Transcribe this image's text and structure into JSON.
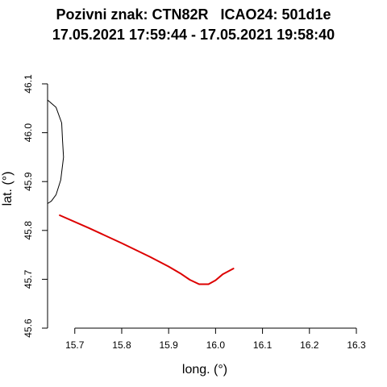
{
  "chart_data": {
    "type": "line",
    "title_line1": "Pozivni znak: CTN82R   ICAO24: 501d1e",
    "title_line2": "17.05.2021 17:59:44 - 17.05.2021 19:58:40",
    "xlabel": "long. (°)",
    "ylabel": "lat. (°)",
    "xlim": [
      15.642,
      16.3
    ],
    "ylim": [
      45.6,
      46.1
    ],
    "x_ticks": [
      15.7,
      15.8,
      15.9,
      16.0,
      16.1,
      16.2,
      16.3
    ],
    "x_tick_labels": [
      "15.7",
      "15.8",
      "15.9",
      "16.0",
      "16.1",
      "16.2",
      "16.3"
    ],
    "y_ticks": [
      45.6,
      45.7,
      45.8,
      45.9,
      46.0,
      46.1
    ],
    "y_tick_labels": [
      "45.6",
      "45.7",
      "45.8",
      "45.9",
      "46.0",
      "46.1"
    ],
    "grid": false,
    "series": [
      {
        "color": "#000000",
        "width": 1,
        "x": [
          15.642,
          15.66,
          15.672,
          15.674,
          15.676,
          15.67,
          15.66,
          15.65,
          15.642
        ],
        "y": [
          46.067,
          46.052,
          46.02,
          45.983,
          45.95,
          45.903,
          45.873,
          45.86,
          45.855
        ]
      },
      {
        "color": "#dd0000",
        "width": 2,
        "x": [
          15.668,
          15.73,
          15.8,
          15.86,
          15.9,
          15.925,
          15.945,
          15.965,
          15.985,
          16.0,
          16.015,
          16.038
        ],
        "y": [
          45.831,
          45.805,
          45.774,
          45.746,
          45.726,
          45.712,
          45.699,
          45.69,
          45.69,
          45.698,
          45.71,
          45.722
        ]
      }
    ]
  }
}
